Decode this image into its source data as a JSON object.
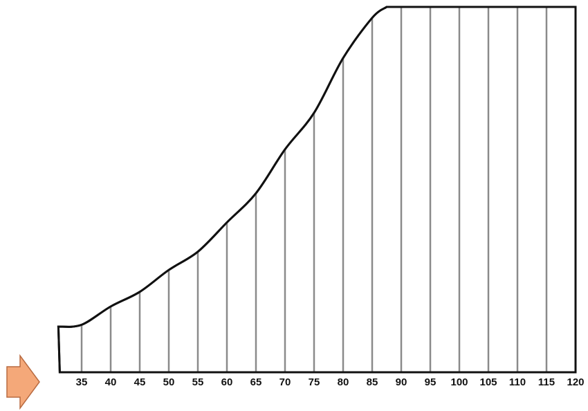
{
  "colors": {
    "background": "#ffffff",
    "outline": "#111111",
    "gridline": "#8a8a8a",
    "arrow_fill": "#f4a879",
    "arrow_stroke": "#b86a40"
  },
  "icons": [
    "arrow-right-icon"
  ],
  "chart_data": {
    "type": "area",
    "title": "",
    "xlabel": "",
    "ylabel": "",
    "xlim": [
      31,
      120
    ],
    "x_ticks": [
      35,
      40,
      45,
      50,
      55,
      60,
      65,
      70,
      75,
      80,
      85,
      90,
      95,
      100,
      105,
      110,
      115,
      120
    ],
    "tick_labels": [
      "35",
      "40",
      "45",
      "50",
      "55",
      "60",
      "65",
      "70",
      "75",
      "80",
      "85",
      "90",
      "95",
      "100",
      "105",
      "110",
      "115",
      "120"
    ],
    "curve_heights": [
      0.13,
      0.18,
      0.22,
      0.28,
      0.33,
      0.41,
      0.49,
      0.61,
      0.71,
      0.86,
      0.97,
      1.0,
      1.0,
      1.0,
      1.0,
      1.0,
      1.0,
      1.0
    ],
    "plateau_start": 87.5,
    "y_axis": false,
    "grid": "vertical lines at ticks",
    "legend": "none"
  }
}
